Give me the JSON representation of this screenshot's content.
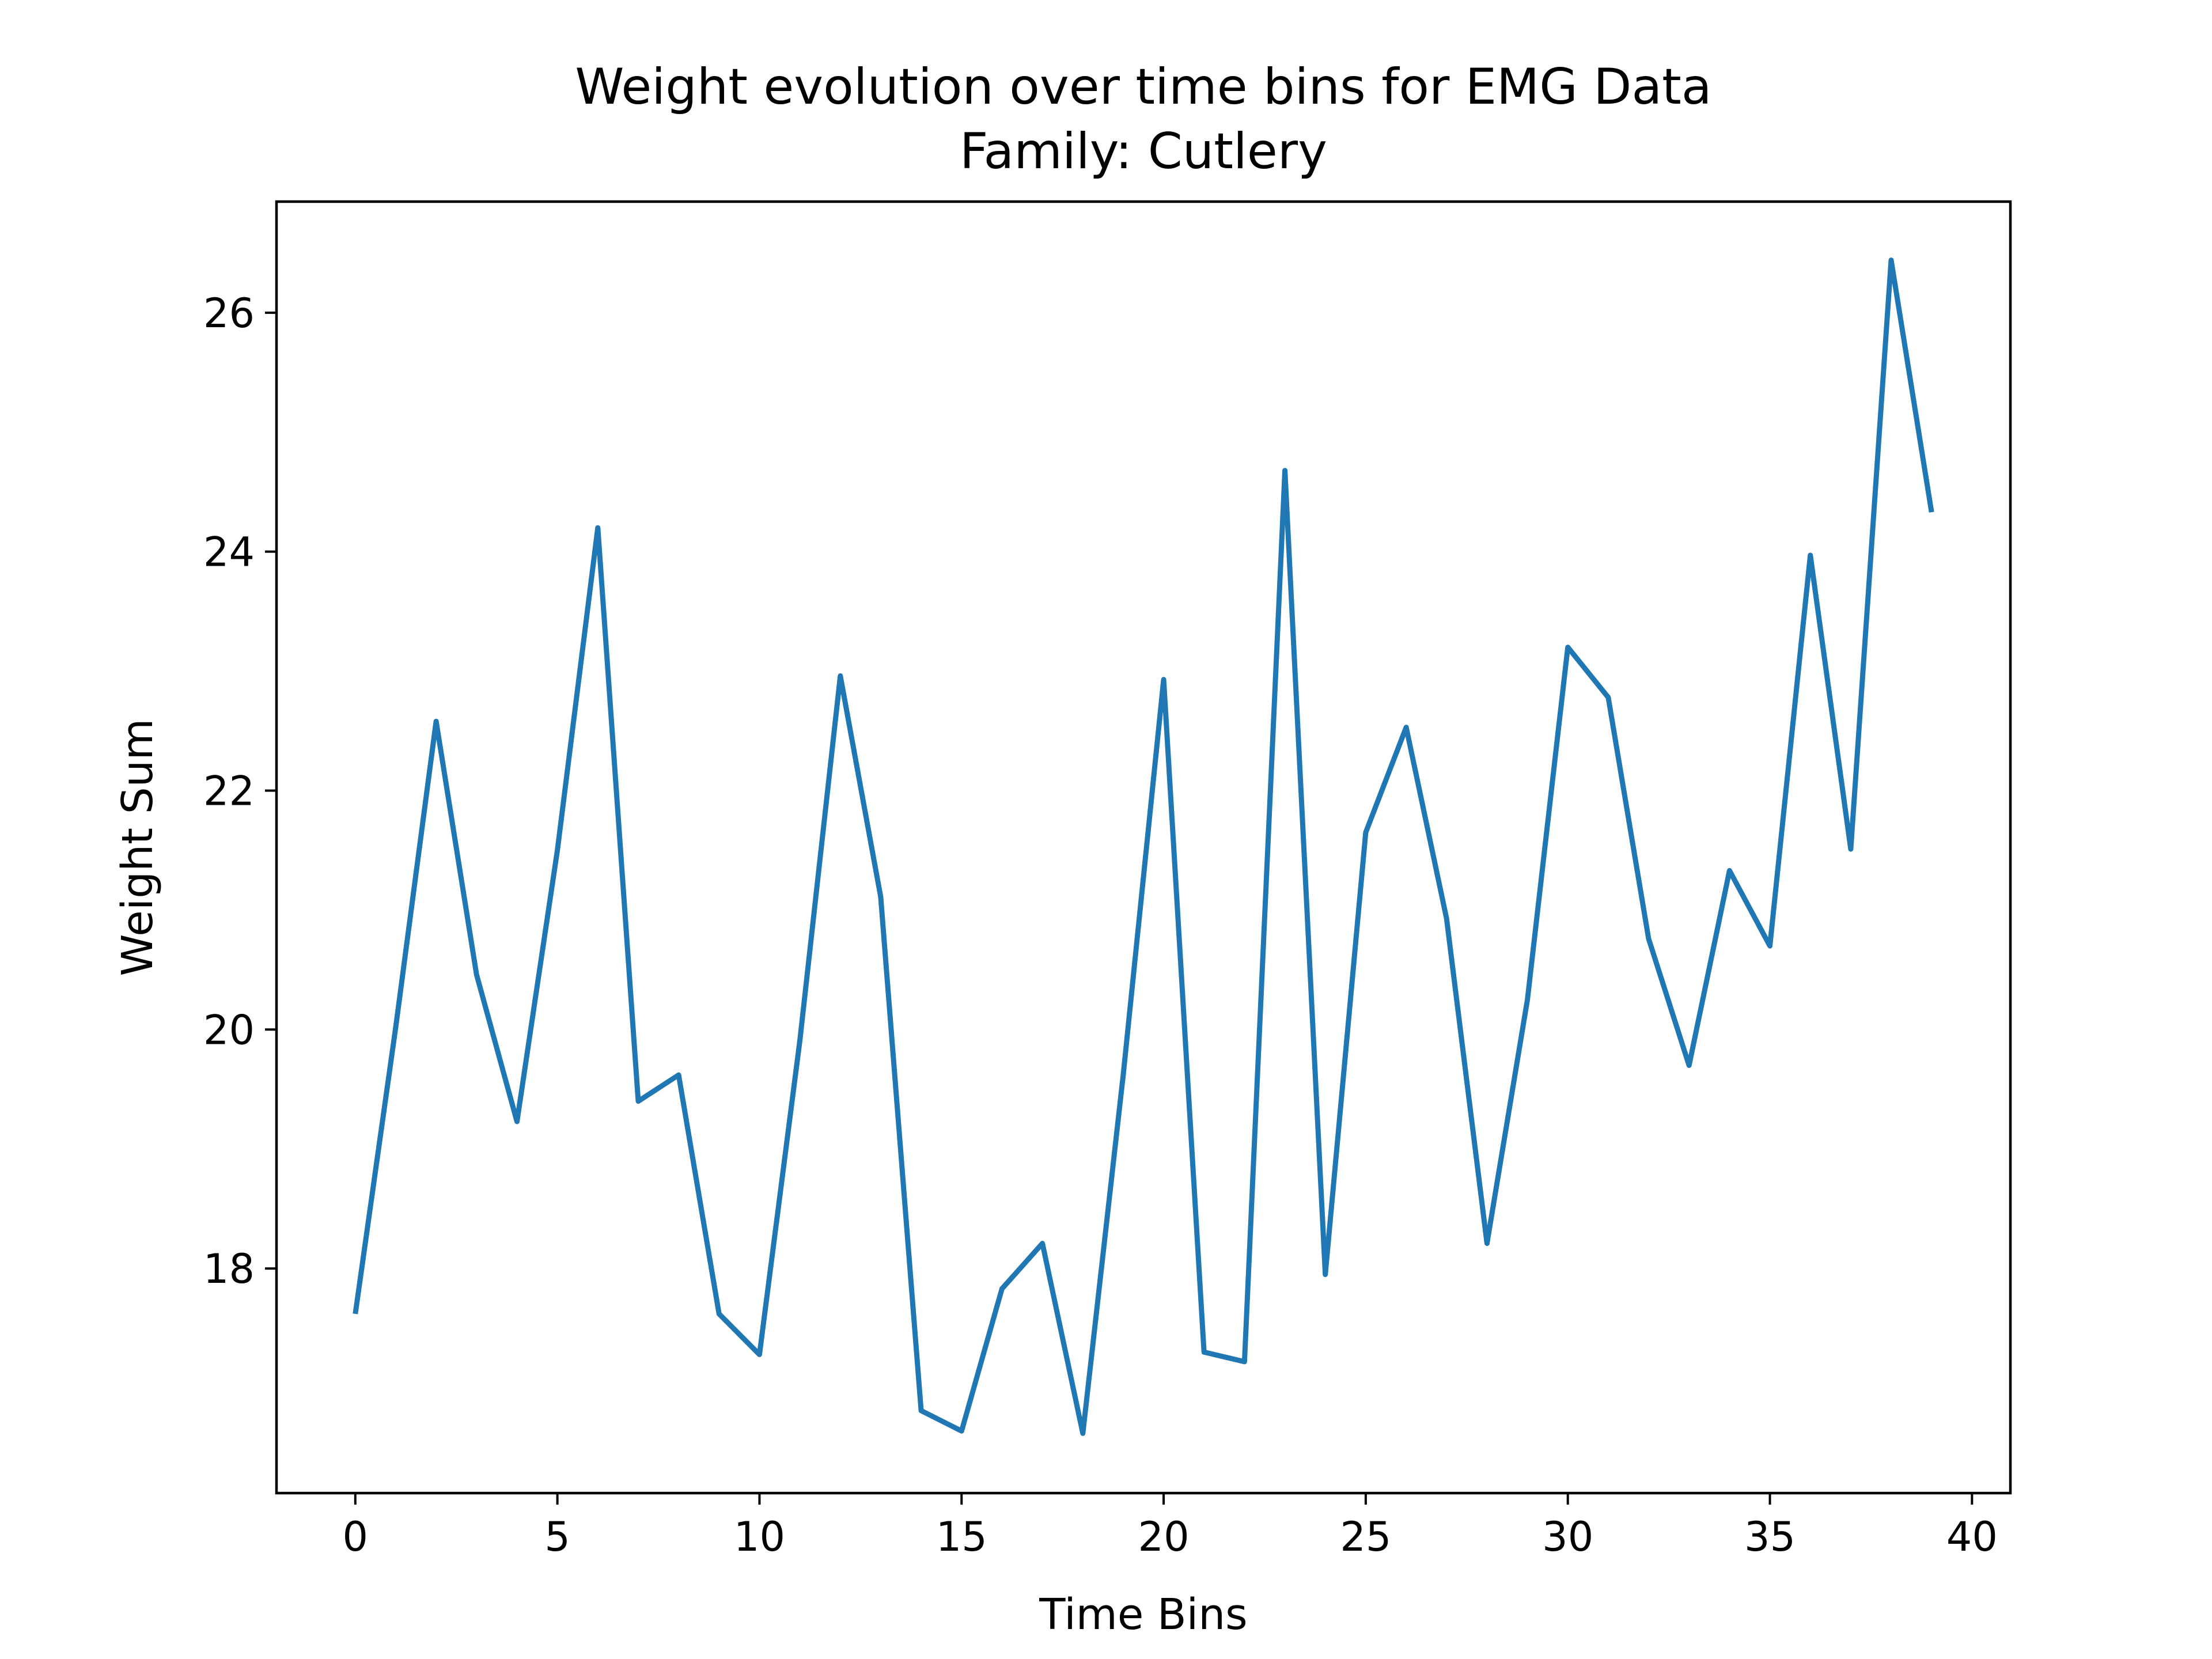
{
  "chart_data": {
    "type": "line",
    "title": "Weight evolution over time bins for EMG Data",
    "subtitle": "Family: Cutlery",
    "xlabel": "Time Bins",
    "ylabel": "Weight Sum",
    "xlim": [
      -1.95,
      40.95
    ],
    "ylim": [
      16.12,
      26.93
    ],
    "xticks": [
      0,
      5,
      10,
      15,
      20,
      25,
      30,
      35,
      40
    ],
    "yticks": [
      18,
      20,
      22,
      24,
      26
    ],
    "grid": false,
    "series": [
      {
        "x": [
          0,
          1,
          2,
          3,
          4,
          5,
          6,
          7,
          8,
          9,
          10,
          11,
          12,
          13,
          14,
          15,
          16,
          17,
          18,
          19,
          20,
          21,
          22,
          23,
          24,
          25,
          26,
          27,
          28,
          29,
          30,
          31,
          32,
          33,
          34,
          35,
          36,
          37,
          38,
          39
        ],
        "values": [
          17.62,
          20.02,
          22.58,
          20.46,
          19.23,
          21.5,
          24.2,
          19.4,
          19.62,
          17.62,
          17.28,
          19.91,
          22.96,
          21.11,
          16.81,
          16.64,
          17.83,
          18.21,
          16.62,
          19.62,
          22.93,
          17.3,
          17.22,
          24.68,
          17.95,
          21.65,
          22.53,
          20.93,
          18.21,
          20.25,
          23.2,
          22.78,
          20.76,
          19.7,
          21.33,
          20.7,
          23.97,
          21.51,
          26.44,
          24.33
        ],
        "color": "#1f77b4"
      }
    ]
  }
}
